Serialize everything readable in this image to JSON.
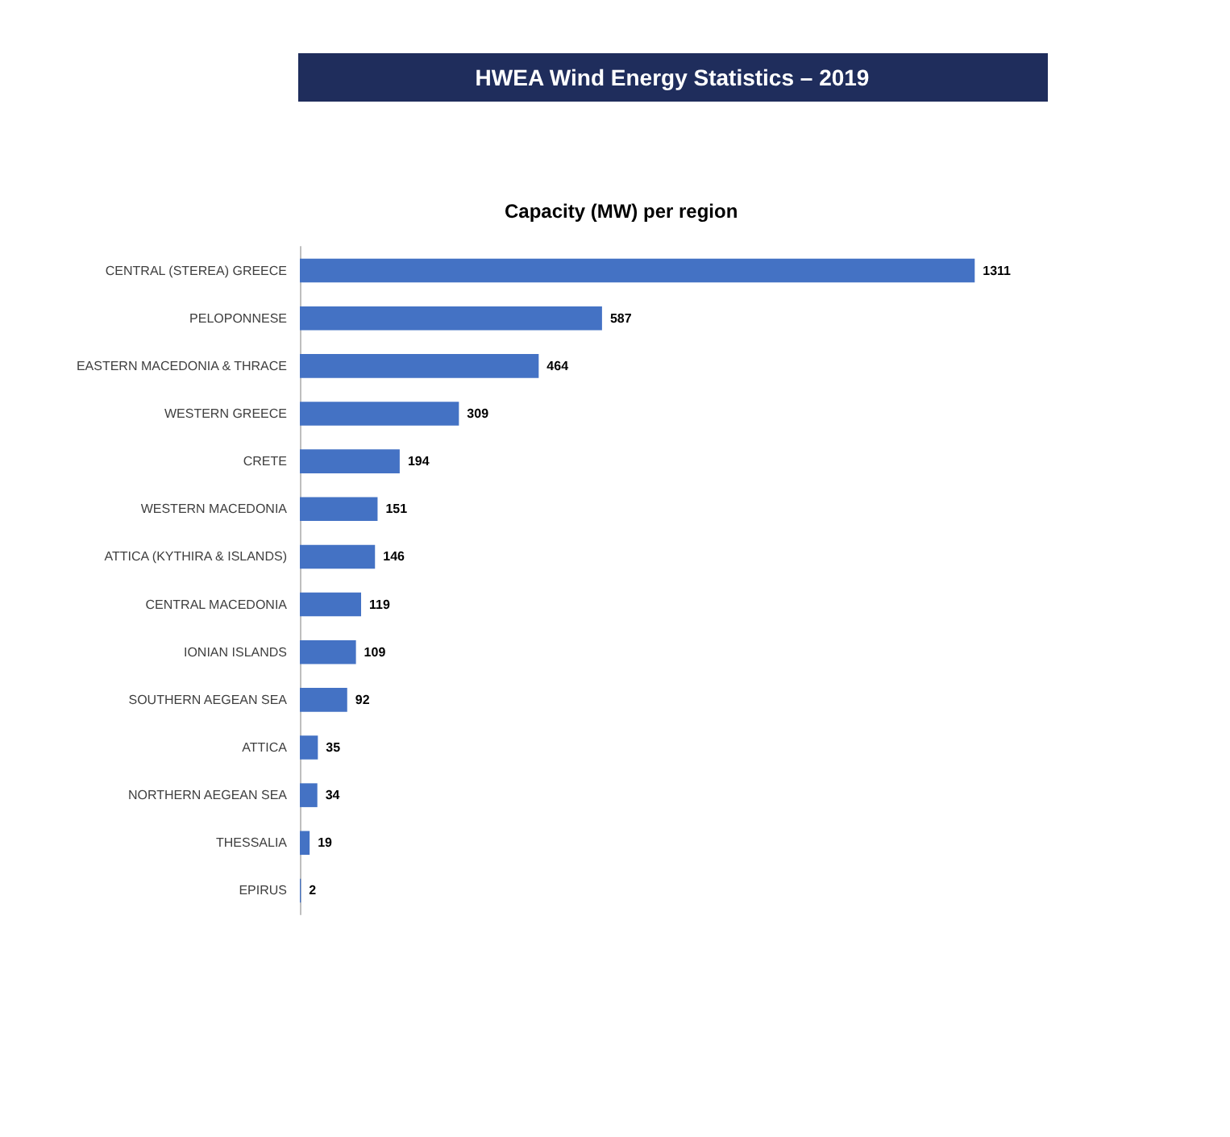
{
  "chart_data": {
    "type": "bar",
    "orientation": "horizontal",
    "title": "HWEA Wind Energy Statistics – 2019",
    "subtitle": "Capacity (MW) per region",
    "categories": [
      "CENTRAL (STEREA) GREECE",
      "PELOPONNESE",
      "EASTERN MACEDONIA & THRACE",
      "WESTERN GREECE",
      "CRETE",
      "WESTERN MACEDONIA",
      "ATTICA (KYTHIRA & ISLANDS)",
      "CENTRAL MACEDONIA",
      "IONIAN ISLANDS",
      "SOUTHERN AEGEAN SEA",
      "ATTICA",
      "NORTHERN AEGEAN SEA",
      "THESSALIA",
      "EPIRUS"
    ],
    "values": [
      1311,
      587,
      464,
      309,
      194,
      151,
      146,
      119,
      109,
      92,
      35,
      34,
      19,
      2
    ],
    "color": "#4472c4",
    "data_labels": true,
    "grid": false
  }
}
